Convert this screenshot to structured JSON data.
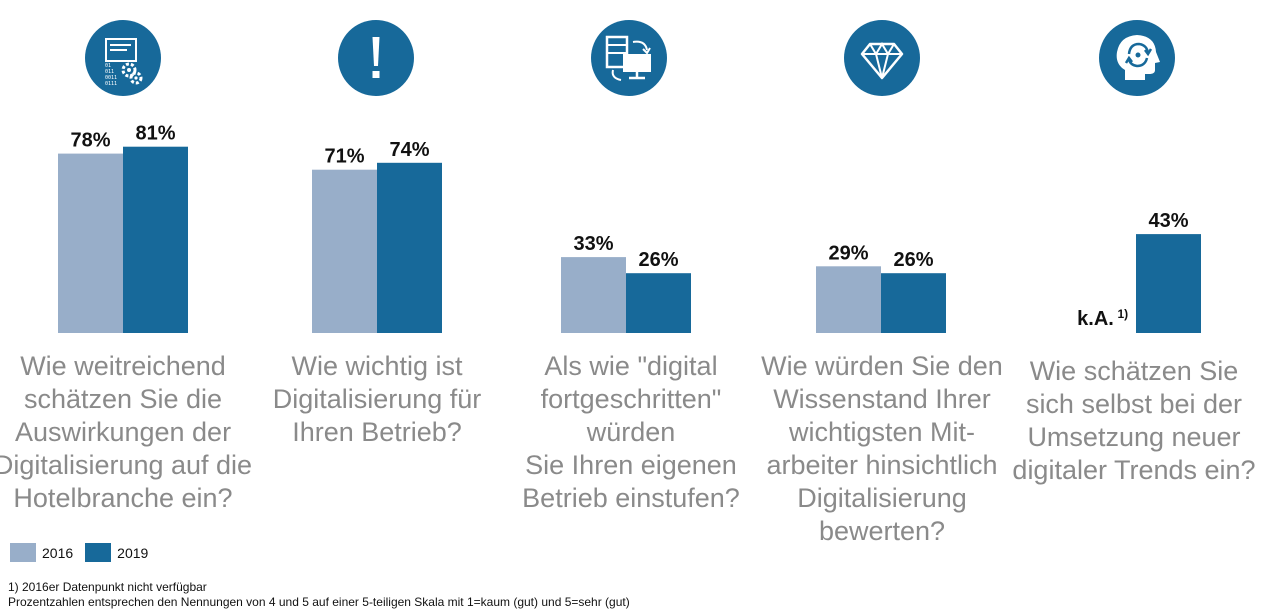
{
  "chart_data": {
    "type": "bar",
    "categories": [
      "Wie weitreichend\nschätzen Sie die\nAuswirkungen der\nDigitalisierung auf die\nHotelbranche ein?",
      "Wie wichtig ist\nDigitalisierung für\nIhren Betrieb?",
      "Als wie \"digital\nfortgeschritten\"\nwürden\nSie Ihren eigenen\nBetrieb einstufen?",
      "Wie würden Sie den\nWissenstand Ihrer\nwichtigsten Mit-\narbeiter hinsichtlich\nDigitalisierung\nbewerten?",
      "Wie schätzen Sie\nsich selbst bei der\nUmsetzung neuer\ndigitaler Trends ein?"
    ],
    "series": [
      {
        "name": "2016",
        "values": [
          78,
          71,
          33,
          29,
          null
        ],
        "labels": [
          "78%",
          "71%",
          "33%",
          "29%",
          "k.A."
        ],
        "missing_note": "1)"
      },
      {
        "name": "2019",
        "values": [
          81,
          74,
          26,
          26,
          43
        ],
        "labels": [
          "81%",
          "74%",
          "26%",
          "26%",
          "43%"
        ]
      }
    ],
    "ylim": [
      0,
      100
    ],
    "grid": false,
    "legend_position": "bottom-left"
  },
  "colors": {
    "2016": "#98aec9",
    "2019": "#17699a",
    "question_text": "#8a8a8a",
    "icon_bg": "#17699a"
  },
  "icons": [
    "data-settings-icon",
    "exclamation-icon",
    "transfer-icon",
    "diamond-icon",
    "head-ideas-icon"
  ],
  "legend": {
    "items": [
      "2016",
      "2019"
    ]
  },
  "footnotes": {
    "note1": "1) 2016er Datenpunkt nicht verfügbar",
    "note2": "Prozentzahlen entsprechen den Nennungen von 4 und 5 auf einer 5-teiligen Skala mit 1=kaum (gut) und 5=sehr (gut)"
  }
}
